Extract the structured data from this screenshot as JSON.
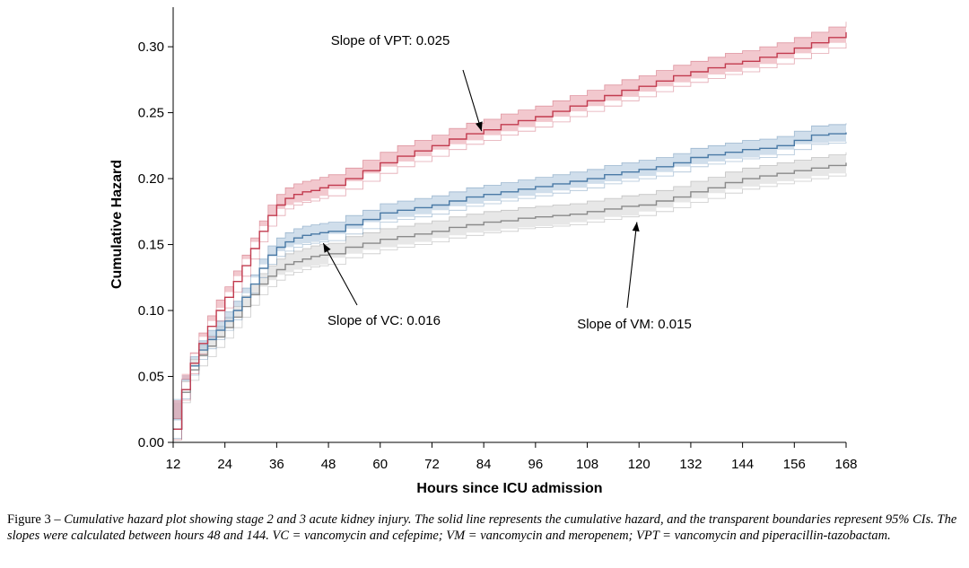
{
  "chart_data": {
    "type": "line",
    "title": "",
    "xlabel": "Hours since ICU admission",
    "ylabel": "Cumulative Hazard",
    "xlim": [
      12,
      168
    ],
    "ylim": [
      0,
      0.33
    ],
    "xticks": [
      12,
      24,
      36,
      48,
      60,
      72,
      84,
      96,
      108,
      120,
      132,
      144,
      156,
      168
    ],
    "yticks": [
      0.0,
      0.05,
      0.1,
      0.15,
      0.2,
      0.25,
      0.3
    ],
    "ytick_labels": [
      "0.00",
      "0.05",
      "0.10",
      "0.15",
      "0.20",
      "0.25",
      "0.30"
    ],
    "grid": false,
    "legend": "none",
    "series": [
      {
        "key": "VPT",
        "color": "#c23b4f",
        "band_color": "#e79aa5",
        "x": [
          12,
          14,
          16,
          18,
          20,
          22,
          24,
          26,
          28,
          30,
          32,
          34,
          36,
          38,
          40,
          42,
          44,
          46,
          48,
          52,
          56,
          60,
          64,
          68,
          72,
          76,
          80,
          84,
          88,
          92,
          96,
          100,
          104,
          108,
          112,
          116,
          120,
          124,
          128,
          132,
          136,
          140,
          144,
          148,
          152,
          156,
          160,
          164,
          168
        ],
        "y": [
          0.01,
          0.04,
          0.06,
          0.075,
          0.088,
          0.1,
          0.11,
          0.122,
          0.134,
          0.147,
          0.16,
          0.172,
          0.18,
          0.185,
          0.188,
          0.19,
          0.191,
          0.193,
          0.195,
          0.2,
          0.206,
          0.212,
          0.217,
          0.221,
          0.225,
          0.23,
          0.234,
          0.237,
          0.241,
          0.244,
          0.247,
          0.251,
          0.255,
          0.259,
          0.263,
          0.267,
          0.27,
          0.274,
          0.278,
          0.281,
          0.284,
          0.287,
          0.289,
          0.292,
          0.295,
          0.299,
          0.303,
          0.307,
          0.311
        ],
        "ci": 0.008
      },
      {
        "key": "VC",
        "color": "#4a7aa6",
        "band_color": "#a9c3da",
        "x": [
          12,
          14,
          16,
          18,
          20,
          22,
          24,
          26,
          28,
          30,
          32,
          34,
          36,
          38,
          40,
          42,
          44,
          46,
          48,
          52,
          56,
          60,
          64,
          68,
          72,
          76,
          80,
          84,
          88,
          92,
          96,
          100,
          104,
          108,
          112,
          116,
          120,
          124,
          128,
          132,
          136,
          140,
          144,
          148,
          152,
          156,
          160,
          164,
          168
        ],
        "y": [
          0.01,
          0.04,
          0.058,
          0.07,
          0.078,
          0.085,
          0.092,
          0.1,
          0.11,
          0.12,
          0.132,
          0.142,
          0.148,
          0.152,
          0.155,
          0.157,
          0.158,
          0.159,
          0.16,
          0.165,
          0.169,
          0.174,
          0.176,
          0.178,
          0.18,
          0.183,
          0.186,
          0.188,
          0.19,
          0.192,
          0.194,
          0.196,
          0.198,
          0.2,
          0.203,
          0.205,
          0.207,
          0.209,
          0.212,
          0.216,
          0.218,
          0.22,
          0.222,
          0.223,
          0.225,
          0.229,
          0.233,
          0.234,
          0.235
        ],
        "ci": 0.007
      },
      {
        "key": "VM",
        "color": "#8a8a8a",
        "band_color": "#d4d4d4",
        "x": [
          12,
          14,
          16,
          18,
          20,
          22,
          24,
          26,
          28,
          30,
          32,
          34,
          36,
          38,
          40,
          42,
          44,
          46,
          48,
          52,
          56,
          60,
          64,
          68,
          72,
          76,
          80,
          84,
          88,
          92,
          96,
          100,
          104,
          108,
          112,
          116,
          120,
          124,
          128,
          132,
          136,
          140,
          144,
          148,
          152,
          156,
          160,
          164,
          168
        ],
        "y": [
          0.01,
          0.038,
          0.055,
          0.066,
          0.073,
          0.08,
          0.087,
          0.095,
          0.103,
          0.112,
          0.12,
          0.126,
          0.131,
          0.135,
          0.137,
          0.139,
          0.141,
          0.142,
          0.143,
          0.148,
          0.151,
          0.154,
          0.156,
          0.158,
          0.16,
          0.163,
          0.165,
          0.167,
          0.168,
          0.17,
          0.171,
          0.172,
          0.173,
          0.175,
          0.177,
          0.179,
          0.18,
          0.183,
          0.186,
          0.19,
          0.193,
          0.197,
          0.2,
          0.202,
          0.204,
          0.206,
          0.208,
          0.21,
          0.212
        ],
        "ci": 0.008
      }
    ],
    "annotations": [
      {
        "key": "VPT",
        "text": "Slope of VPT: 0.025",
        "arrow_to": [
          83.5,
          0.236
        ]
      },
      {
        "key": "VC",
        "text": "Slope of VC: 0.016",
        "arrow_to": [
          46.8,
          0.151
        ]
      },
      {
        "key": "VM",
        "text": "Slope of VM: 0.015",
        "arrow_to": [
          119.5,
          0.167
        ]
      }
    ]
  },
  "caption": {
    "label": "Figure 3 – ",
    "text": "Cumulative hazard plot showing stage 2 and 3 acute kidney injury. The solid line represents the cumulative hazard, and the transparent boundaries represent 95% CIs. The slopes were calculated between hours 48 and 144. VC = vancomycin and cefepime; VM = vancomycin and meropenem; VPT = vancomycin and piperacillin-tazobactam."
  }
}
